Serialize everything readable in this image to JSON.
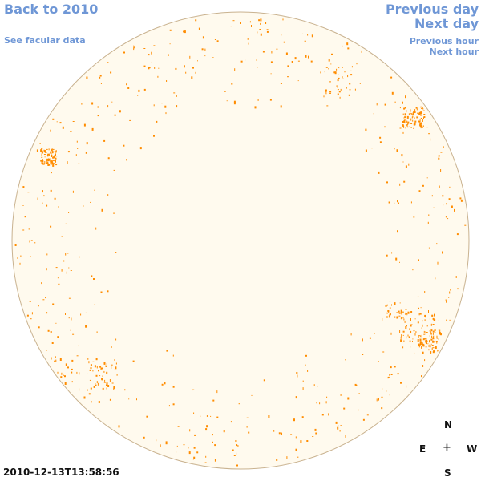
{
  "nav": {
    "back_label": "Back to 2010",
    "facular_label": "See facular data",
    "prev_day_label": "Previous day",
    "next_day_label": "Next day",
    "prev_hour_label": "Previous hour",
    "next_hour_label": "Next hour"
  },
  "compass": {
    "north": "N",
    "east": "E",
    "center": "+",
    "west": "W",
    "south": "S"
  },
  "timestamp": "2010-12-13T13:58:56",
  "colors": {
    "link": "#6f97d6",
    "disk_fill": "#fffaee",
    "disk_edge": "#c9b28f",
    "plage": "#ff8c00",
    "text": "#111111"
  },
  "disk": {
    "image": "solar-disk-chromospheric-plage-map",
    "plage_marks": "orange"
  }
}
